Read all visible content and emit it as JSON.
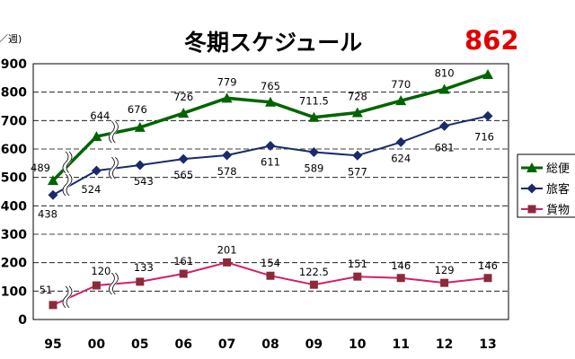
{
  "chart_data": {
    "type": "line",
    "title": "冬期スケジュール",
    "highlight_value": "862",
    "ylabel": "／週)",
    "ylim": [
      0,
      900
    ],
    "grid": true,
    "legend_position": "right",
    "categories": [
      "95",
      "00",
      "05",
      "06",
      "07",
      "08",
      "09",
      "10",
      "11",
      "12",
      "13"
    ],
    "y_tick_labels": [
      "0",
      "100",
      "200",
      "300",
      "400",
      "500",
      "600",
      "700",
      "800",
      "900"
    ],
    "series": [
      {
        "name": "総便",
        "color": "#006400",
        "marker": "triangle",
        "values": [
          489,
          644,
          676,
          726,
          779,
          765,
          711.5,
          728,
          770,
          810,
          862
        ],
        "labels": [
          "489",
          "644",
          "676",
          "726",
          "779",
          "765",
          "711.5",
          "728",
          "770",
          "810",
          ""
        ]
      },
      {
        "name": "旅客",
        "color": "#1a2a6c",
        "marker": "diamond",
        "values": [
          438,
          524,
          543,
          565,
          578,
          611,
          589,
          577,
          624,
          681,
          716
        ],
        "labels": [
          "438",
          "524",
          "543",
          "565",
          "578",
          "611",
          "589",
          "577",
          "624",
          "681",
          "716"
        ]
      },
      {
        "name": "貨物",
        "color": "#d0206a",
        "marker": "square",
        "marker_color": "#8b2a3a",
        "values": [
          51,
          120,
          133,
          161,
          201,
          154,
          122.5,
          151,
          146,
          129,
          146
        ],
        "labels": [
          "51",
          "120",
          "133",
          "161",
          "201",
          "154",
          "122.5",
          "151",
          "146",
          "129",
          "146"
        ]
      }
    ]
  }
}
